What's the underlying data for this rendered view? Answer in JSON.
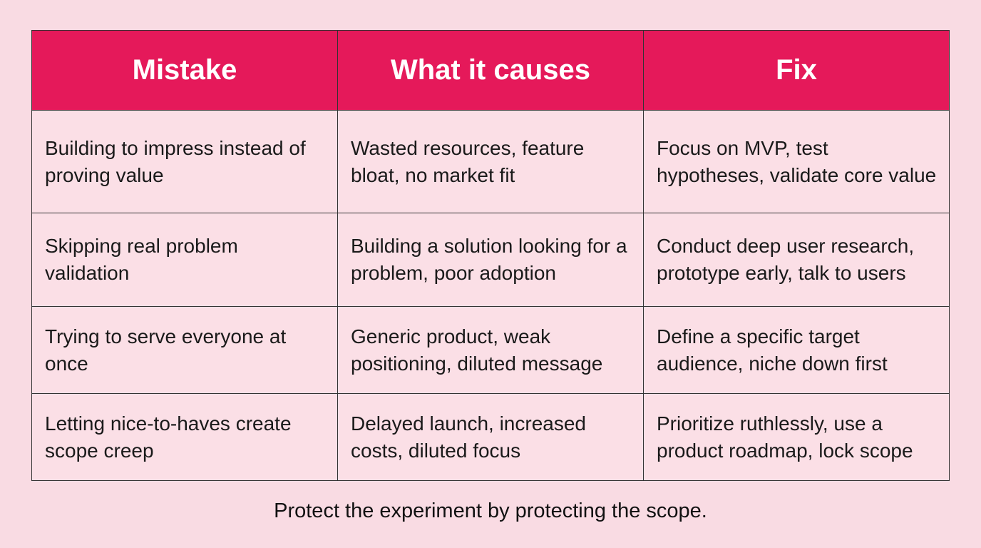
{
  "table": {
    "headers": [
      "Mistake",
      "What it causes",
      "Fix"
    ],
    "rows": [
      [
        "Building to impress instead of proving value",
        "Wasted resources, feature bloat, no market fit",
        "Focus on MVP, test hypotheses, validate core value"
      ],
      [
        "Skipping real problem validation",
        "Building a solution looking for a problem, poor adoption",
        "Conduct deep user research, prototype early, talk to users"
      ],
      [
        "Trying to serve everyone at once",
        "Generic product, weak positioning, diluted message",
        "Define a specific target audience, niche down first"
      ],
      [
        "Letting nice-to-haves create scope creep",
        "Delayed launch, increased costs, diluted focus",
        "Prioritize ruthlessly, use a product roadmap, lock scope"
      ]
    ]
  },
  "footer": "Protect the experiment by protecting the scope.",
  "colors": {
    "header": "#e5195a",
    "background": "#f9dbe3"
  }
}
